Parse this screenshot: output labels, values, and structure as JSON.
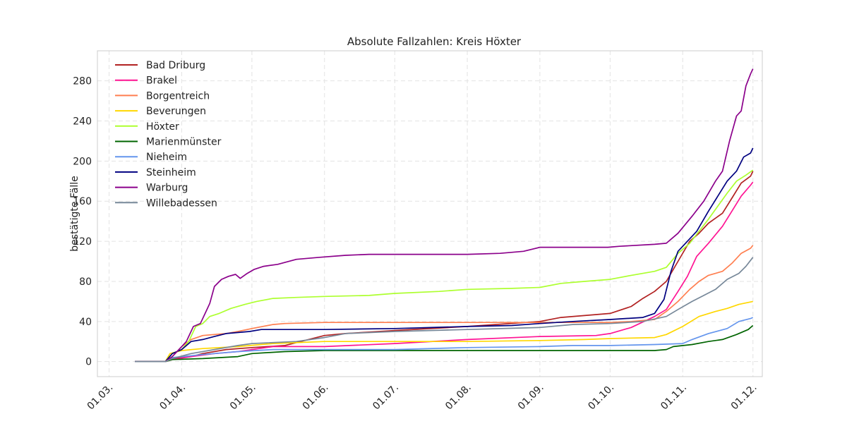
{
  "chart_data": {
    "type": "line",
    "title": "Absolute Fallzahlen: Kreis Höxter",
    "xlabel": "",
    "ylabel": "bestätigte Fälle",
    "x_ticks": [
      "01.03.",
      "01.04.",
      "01.05.",
      "01.06.",
      "01.07.",
      "01.08.",
      "01.09.",
      "01.10.",
      "01.11.",
      "01.12."
    ],
    "y_ticks": [
      0,
      40,
      80,
      120,
      160,
      200,
      240,
      280
    ],
    "xlim": [
      "2020-02-25",
      "2020-12-05"
    ],
    "ylim": [
      -15,
      310
    ],
    "grid": true,
    "legend_position": "top-left",
    "series": [
      {
        "name": "Bad Driburg",
        "color": "#b22222",
        "points": [
          [
            "2020-03-12",
            0
          ],
          [
            "2020-03-25",
            0
          ],
          [
            "2020-03-28",
            3
          ],
          [
            "2020-04-05",
            5
          ],
          [
            "2020-04-10",
            8
          ],
          [
            "2020-04-20",
            12
          ],
          [
            "2020-05-01",
            14
          ],
          [
            "2020-05-15",
            16
          ],
          [
            "2020-06-01",
            26
          ],
          [
            "2020-06-10",
            28
          ],
          [
            "2020-07-01",
            31
          ],
          [
            "2020-08-01",
            35
          ],
          [
            "2020-09-01",
            40
          ],
          [
            "2020-09-10",
            44
          ],
          [
            "2020-10-01",
            48
          ],
          [
            "2020-10-10",
            55
          ],
          [
            "2020-10-15",
            63
          ],
          [
            "2020-10-20",
            70
          ],
          [
            "2020-10-25",
            80
          ],
          [
            "2020-10-30",
            100
          ],
          [
            "2020-11-04",
            120
          ],
          [
            "2020-11-08",
            128
          ],
          [
            "2020-11-12",
            138
          ],
          [
            "2020-11-18",
            148
          ],
          [
            "2020-11-22",
            163
          ],
          [
            "2020-11-26",
            178
          ],
          [
            "2020-11-30",
            185
          ],
          [
            "2020-12-01",
            190
          ]
        ]
      },
      {
        "name": "Brakel",
        "color": "#ff1493",
        "points": [
          [
            "2020-03-12",
            0
          ],
          [
            "2020-03-25",
            0
          ],
          [
            "2020-03-28",
            2
          ],
          [
            "2020-04-05",
            5
          ],
          [
            "2020-04-15",
            8
          ],
          [
            "2020-04-25",
            10
          ],
          [
            "2020-05-01",
            12
          ],
          [
            "2020-05-10",
            15
          ],
          [
            "2020-06-01",
            15
          ],
          [
            "2020-07-01",
            18
          ],
          [
            "2020-08-01",
            22
          ],
          [
            "2020-09-01",
            25
          ],
          [
            "2020-09-25",
            26
          ],
          [
            "2020-10-01",
            28
          ],
          [
            "2020-10-10",
            34
          ],
          [
            "2020-10-20",
            45
          ],
          [
            "2020-10-25",
            52
          ],
          [
            "2020-10-30",
            70
          ],
          [
            "2020-11-03",
            85
          ],
          [
            "2020-11-07",
            105
          ],
          [
            "2020-11-12",
            118
          ],
          [
            "2020-11-18",
            135
          ],
          [
            "2020-11-22",
            150
          ],
          [
            "2020-11-26",
            165
          ],
          [
            "2020-11-30",
            176
          ],
          [
            "2020-12-01",
            179
          ]
        ]
      },
      {
        "name": "Borgentreich",
        "color": "#ff7f50",
        "points": [
          [
            "2020-03-12",
            0
          ],
          [
            "2020-03-25",
            0
          ],
          [
            "2020-03-28",
            5
          ],
          [
            "2020-04-01",
            15
          ],
          [
            "2020-04-05",
            22
          ],
          [
            "2020-04-10",
            26
          ],
          [
            "2020-04-20",
            28
          ],
          [
            "2020-04-25",
            30
          ],
          [
            "2020-05-01",
            33
          ],
          [
            "2020-05-10",
            37
          ],
          [
            "2020-05-15",
            38
          ],
          [
            "2020-06-01",
            39
          ],
          [
            "2020-08-01",
            39
          ],
          [
            "2020-09-01",
            39
          ],
          [
            "2020-10-01",
            39
          ],
          [
            "2020-10-10",
            40
          ],
          [
            "2020-10-20",
            42
          ],
          [
            "2020-10-25",
            50
          ],
          [
            "2020-10-30",
            60
          ],
          [
            "2020-11-04",
            72
          ],
          [
            "2020-11-08",
            80
          ],
          [
            "2020-11-12",
            86
          ],
          [
            "2020-11-18",
            90
          ],
          [
            "2020-11-22",
            98
          ],
          [
            "2020-11-26",
            108
          ],
          [
            "2020-11-30",
            113
          ],
          [
            "2020-12-01",
            116
          ]
        ]
      },
      {
        "name": "Beverungen",
        "color": "#ffd700",
        "points": [
          [
            "2020-03-12",
            0
          ],
          [
            "2020-03-25",
            0
          ],
          [
            "2020-03-27",
            8
          ],
          [
            "2020-04-01",
            11
          ],
          [
            "2020-04-10",
            13
          ],
          [
            "2020-04-25",
            15
          ],
          [
            "2020-05-10",
            18
          ],
          [
            "2020-06-01",
            20
          ],
          [
            "2020-08-01",
            20
          ],
          [
            "2020-09-01",
            21
          ],
          [
            "2020-09-20",
            22
          ],
          [
            "2020-10-01",
            23
          ],
          [
            "2020-10-20",
            24
          ],
          [
            "2020-10-25",
            27
          ],
          [
            "2020-11-01",
            35
          ],
          [
            "2020-11-08",
            45
          ],
          [
            "2020-11-15",
            50
          ],
          [
            "2020-11-20",
            53
          ],
          [
            "2020-11-25",
            57
          ],
          [
            "2020-12-01",
            60
          ]
        ]
      },
      {
        "name": "Höxter",
        "color": "#adff2f",
        "points": [
          [
            "2020-03-12",
            0
          ],
          [
            "2020-03-25",
            0
          ],
          [
            "2020-03-28",
            8
          ],
          [
            "2020-04-01",
            12
          ],
          [
            "2020-04-04",
            20
          ],
          [
            "2020-04-07",
            35
          ],
          [
            "2020-04-10",
            38
          ],
          [
            "2020-04-13",
            45
          ],
          [
            "2020-04-17",
            48
          ],
          [
            "2020-04-22",
            53
          ],
          [
            "2020-04-28",
            57
          ],
          [
            "2020-05-03",
            60
          ],
          [
            "2020-05-10",
            63
          ],
          [
            "2020-05-20",
            64
          ],
          [
            "2020-06-01",
            65
          ],
          [
            "2020-06-20",
            66
          ],
          [
            "2020-07-01",
            68
          ],
          [
            "2020-07-20",
            70
          ],
          [
            "2020-08-01",
            72
          ],
          [
            "2020-08-20",
            73
          ],
          [
            "2020-09-01",
            74
          ],
          [
            "2020-09-10",
            78
          ],
          [
            "2020-09-20",
            80
          ],
          [
            "2020-10-01",
            82
          ],
          [
            "2020-10-10",
            86
          ],
          [
            "2020-10-20",
            90
          ],
          [
            "2020-10-25",
            94
          ],
          [
            "2020-10-30",
            108
          ],
          [
            "2020-11-04",
            118
          ],
          [
            "2020-11-08",
            130
          ],
          [
            "2020-11-12",
            142
          ],
          [
            "2020-11-16",
            155
          ],
          [
            "2020-11-20",
            168
          ],
          [
            "2020-11-24",
            180
          ],
          [
            "2020-11-28",
            186
          ],
          [
            "2020-12-01",
            191
          ]
        ]
      },
      {
        "name": "Marienmünster",
        "color": "#006400",
        "points": [
          [
            "2020-03-12",
            0
          ],
          [
            "2020-03-25",
            0
          ],
          [
            "2020-03-28",
            2
          ],
          [
            "2020-04-10",
            3
          ],
          [
            "2020-04-25",
            5
          ],
          [
            "2020-05-01",
            8
          ],
          [
            "2020-05-15",
            10
          ],
          [
            "2020-06-01",
            11
          ],
          [
            "2020-08-01",
            11
          ],
          [
            "2020-10-20",
            11
          ],
          [
            "2020-10-25",
            12
          ],
          [
            "2020-10-28",
            15
          ],
          [
            "2020-11-05",
            17
          ],
          [
            "2020-11-12",
            20
          ],
          [
            "2020-11-18",
            22
          ],
          [
            "2020-11-24",
            27
          ],
          [
            "2020-11-29",
            32
          ],
          [
            "2020-12-01",
            36
          ]
        ]
      },
      {
        "name": "Nieheim",
        "color": "#6495ed",
        "points": [
          [
            "2020-03-12",
            0
          ],
          [
            "2020-03-25",
            0
          ],
          [
            "2020-03-28",
            4
          ],
          [
            "2020-04-10",
            7
          ],
          [
            "2020-04-25",
            10
          ],
          [
            "2020-05-10",
            12
          ],
          [
            "2020-06-01",
            12
          ],
          [
            "2020-07-01",
            12
          ],
          [
            "2020-08-01",
            14
          ],
          [
            "2020-09-01",
            15
          ],
          [
            "2020-09-15",
            16
          ],
          [
            "2020-10-01",
            16
          ],
          [
            "2020-10-20",
            17
          ],
          [
            "2020-11-01",
            18
          ],
          [
            "2020-11-05",
            22
          ],
          [
            "2020-11-12",
            28
          ],
          [
            "2020-11-20",
            33
          ],
          [
            "2020-11-25",
            40
          ],
          [
            "2020-11-30",
            43
          ],
          [
            "2020-12-01",
            44
          ]
        ]
      },
      {
        "name": "Steinheim",
        "color": "#000080",
        "points": [
          [
            "2020-03-12",
            0
          ],
          [
            "2020-03-25",
            0
          ],
          [
            "2020-03-28",
            8
          ],
          [
            "2020-04-01",
            12
          ],
          [
            "2020-04-05",
            20
          ],
          [
            "2020-04-10",
            22
          ],
          [
            "2020-04-15",
            25
          ],
          [
            "2020-04-20",
            28
          ],
          [
            "2020-04-30",
            30
          ],
          [
            "2020-05-05",
            32
          ],
          [
            "2020-06-01",
            32
          ],
          [
            "2020-07-01",
            33
          ],
          [
            "2020-08-01",
            35
          ],
          [
            "2020-08-20",
            36
          ],
          [
            "2020-09-01",
            38
          ],
          [
            "2020-09-15",
            40
          ],
          [
            "2020-10-01",
            42
          ],
          [
            "2020-10-15",
            44
          ],
          [
            "2020-10-20",
            48
          ],
          [
            "2020-10-24",
            62
          ],
          [
            "2020-10-27",
            90
          ],
          [
            "2020-10-30",
            110
          ],
          [
            "2020-11-03",
            120
          ],
          [
            "2020-11-07",
            130
          ],
          [
            "2020-11-12",
            150
          ],
          [
            "2020-11-16",
            165
          ],
          [
            "2020-11-20",
            180
          ],
          [
            "2020-11-24",
            190
          ],
          [
            "2020-11-27",
            204
          ],
          [
            "2020-11-30",
            208
          ],
          [
            "2020-12-01",
            213
          ]
        ]
      },
      {
        "name": "Warburg",
        "color": "#8b008b",
        "points": [
          [
            "2020-03-12",
            0
          ],
          [
            "2020-03-25",
            0
          ],
          [
            "2020-03-28",
            5
          ],
          [
            "2020-04-01",
            15
          ],
          [
            "2020-04-03",
            20
          ],
          [
            "2020-04-06",
            35
          ],
          [
            "2020-04-09",
            38
          ],
          [
            "2020-04-11",
            48
          ],
          [
            "2020-04-13",
            58
          ],
          [
            "2020-04-15",
            75
          ],
          [
            "2020-04-18",
            82
          ],
          [
            "2020-04-21",
            85
          ],
          [
            "2020-04-24",
            87
          ],
          [
            "2020-04-26",
            83
          ],
          [
            "2020-04-29",
            88
          ],
          [
            "2020-05-02",
            92
          ],
          [
            "2020-05-06",
            95
          ],
          [
            "2020-05-12",
            97
          ],
          [
            "2020-05-20",
            102
          ],
          [
            "2020-05-30",
            104
          ],
          [
            "2020-06-10",
            106
          ],
          [
            "2020-06-20",
            107
          ],
          [
            "2020-08-01",
            107
          ],
          [
            "2020-08-15",
            108
          ],
          [
            "2020-08-25",
            110
          ],
          [
            "2020-09-01",
            114
          ],
          [
            "2020-09-30",
            114
          ],
          [
            "2020-10-05",
            115
          ],
          [
            "2020-10-20",
            117
          ],
          [
            "2020-10-25",
            118
          ],
          [
            "2020-10-30",
            128
          ],
          [
            "2020-11-05",
            145
          ],
          [
            "2020-11-10",
            160
          ],
          [
            "2020-11-15",
            180
          ],
          [
            "2020-11-18",
            190
          ],
          [
            "2020-11-21",
            220
          ],
          [
            "2020-11-24",
            245
          ],
          [
            "2020-11-26",
            250
          ],
          [
            "2020-11-28",
            275
          ],
          [
            "2020-11-30",
            287
          ],
          [
            "2020-12-01",
            292
          ]
        ]
      },
      {
        "name": "Willebadessen",
        "color": "#778899",
        "points": [
          [
            "2020-03-12",
            0
          ],
          [
            "2020-03-25",
            0
          ],
          [
            "2020-03-28",
            3
          ],
          [
            "2020-04-05",
            8
          ],
          [
            "2020-04-15",
            12
          ],
          [
            "2020-04-25",
            16
          ],
          [
            "2020-05-01",
            18
          ],
          [
            "2020-05-20",
            20
          ],
          [
            "2020-06-01",
            24
          ],
          [
            "2020-06-10",
            28
          ],
          [
            "2020-07-01",
            30
          ],
          [
            "2020-08-01",
            32
          ],
          [
            "2020-09-01",
            34
          ],
          [
            "2020-09-15",
            37
          ],
          [
            "2020-10-01",
            38
          ],
          [
            "2020-10-15",
            40
          ],
          [
            "2020-10-25",
            45
          ],
          [
            "2020-10-30",
            52
          ],
          [
            "2020-11-05",
            60
          ],
          [
            "2020-11-10",
            66
          ],
          [
            "2020-11-15",
            72
          ],
          [
            "2020-11-20",
            82
          ],
          [
            "2020-11-25",
            88
          ],
          [
            "2020-11-28",
            95
          ],
          [
            "2020-12-01",
            104
          ]
        ]
      }
    ]
  }
}
